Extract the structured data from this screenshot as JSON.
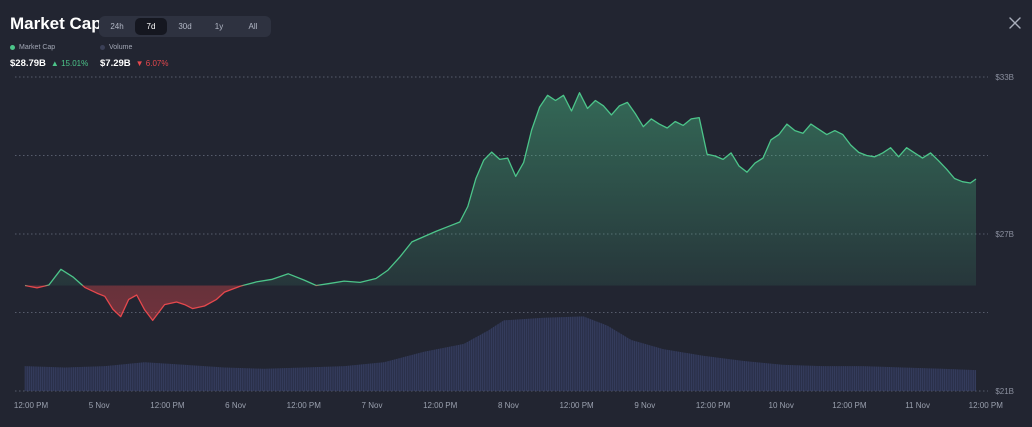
{
  "header": {
    "title": "Market Cap",
    "tabs": [
      {
        "label": "24h",
        "active": false
      },
      {
        "label": "7d",
        "active": true
      },
      {
        "label": "30d",
        "active": false
      },
      {
        "label": "1y",
        "active": false
      },
      {
        "label": "All",
        "active": false
      }
    ],
    "close_icon": "close-icon"
  },
  "legend": {
    "market_cap": {
      "label": "Market Cap",
      "value": "$28.79B",
      "change": "15.01%",
      "direction": "up",
      "color": "#4cc58a"
    },
    "volume": {
      "label": "Volume",
      "value": "$7.29B",
      "change": "6.07%",
      "direction": "down",
      "color": "#3b4057"
    }
  },
  "colors": {
    "up": "#4cc58a",
    "down": "#e5484d",
    "background": "#222531",
    "volume_bars": "#323a5e"
  },
  "chart_data": {
    "type": "line",
    "y_ticks": [
      {
        "label": "$33B",
        "value": 33
      },
      {
        "label": "$27B",
        "value": 27
      },
      {
        "label": "$21B",
        "value": 21
      }
    ],
    "x_ticks": [
      "12:00 PM",
      "5 Nov",
      "12:00 PM",
      "6 Nov",
      "12:00 PM",
      "7 Nov",
      "12:00 PM",
      "8 Nov",
      "12:00 PM",
      "9 Nov",
      "12:00 PM",
      "10 Nov",
      "12:00 PM",
      "11 Nov",
      "12:00 PM"
    ],
    "baseline": 25.03,
    "series": [
      {
        "name": "Market Cap",
        "points": [
          [
            0,
            25.03
          ],
          [
            0.15,
            24.94
          ],
          [
            0.3,
            25.05
          ],
          [
            0.45,
            25.65
          ],
          [
            0.6,
            25.36
          ],
          [
            0.75,
            24.96
          ],
          [
            0.9,
            24.74
          ],
          [
            1.0,
            24.62
          ],
          [
            1.1,
            24.13
          ],
          [
            1.2,
            23.84
          ],
          [
            1.3,
            24.5
          ],
          [
            1.4,
            24.67
          ],
          [
            1.5,
            24.1
          ],
          [
            1.6,
            23.7
          ],
          [
            1.75,
            24.3
          ],
          [
            1.9,
            24.4
          ],
          [
            2.0,
            24.3
          ],
          [
            2.1,
            24.15
          ],
          [
            2.25,
            24.25
          ],
          [
            2.4,
            24.5
          ],
          [
            2.5,
            24.78
          ],
          [
            2.7,
            25.01
          ],
          [
            2.9,
            25.17
          ],
          [
            3.1,
            25.27
          ],
          [
            3.3,
            25.48
          ],
          [
            3.5,
            25.24
          ],
          [
            3.65,
            25.03
          ],
          [
            3.8,
            25.1
          ],
          [
            4.0,
            25.2
          ],
          [
            4.2,
            25.15
          ],
          [
            4.4,
            25.3
          ],
          [
            4.55,
            25.62
          ],
          [
            4.7,
            26.13
          ],
          [
            4.85,
            26.7
          ],
          [
            5.0,
            26.9
          ],
          [
            5.15,
            27.1
          ],
          [
            5.3,
            27.28
          ],
          [
            5.45,
            27.46
          ],
          [
            5.55,
            28.05
          ],
          [
            5.65,
            29.11
          ],
          [
            5.75,
            29.82
          ],
          [
            5.85,
            30.13
          ],
          [
            5.95,
            29.85
          ],
          [
            6.05,
            29.9
          ],
          [
            6.15,
            29.2
          ],
          [
            6.25,
            29.73
          ],
          [
            6.35,
            30.97
          ],
          [
            6.45,
            31.85
          ],
          [
            6.55,
            32.3
          ],
          [
            6.65,
            32.1
          ],
          [
            6.75,
            32.3
          ],
          [
            6.85,
            31.7
          ],
          [
            6.95,
            32.4
          ],
          [
            7.05,
            31.8
          ],
          [
            7.15,
            32.1
          ],
          [
            7.25,
            31.9
          ],
          [
            7.35,
            31.55
          ],
          [
            7.45,
            31.9
          ],
          [
            7.55,
            32.03
          ],
          [
            7.65,
            31.6
          ],
          [
            7.75,
            31.1
          ],
          [
            7.85,
            31.4
          ],
          [
            7.95,
            31.2
          ],
          [
            8.05,
            31.05
          ],
          [
            8.15,
            31.3
          ],
          [
            8.25,
            31.15
          ],
          [
            8.35,
            31.4
          ],
          [
            8.45,
            31.45
          ],
          [
            8.55,
            30.05
          ],
          [
            8.65,
            29.98
          ],
          [
            8.75,
            29.85
          ],
          [
            8.85,
            30.1
          ],
          [
            8.95,
            29.6
          ],
          [
            9.05,
            29.36
          ],
          [
            9.15,
            29.71
          ],
          [
            9.25,
            29.9
          ],
          [
            9.35,
            30.6
          ],
          [
            9.45,
            30.8
          ],
          [
            9.55,
            31.2
          ],
          [
            9.65,
            30.95
          ],
          [
            9.75,
            30.85
          ],
          [
            9.85,
            31.2
          ],
          [
            9.95,
            31.0
          ],
          [
            10.05,
            30.8
          ],
          [
            10.15,
            30.95
          ],
          [
            10.25,
            30.8
          ],
          [
            10.35,
            30.4
          ],
          [
            10.45,
            30.12
          ],
          [
            10.55,
            30.0
          ],
          [
            10.65,
            29.95
          ],
          [
            10.75,
            30.1
          ],
          [
            10.85,
            30.3
          ],
          [
            10.95,
            29.95
          ],
          [
            11.05,
            30.3
          ],
          [
            11.15,
            30.1
          ],
          [
            11.25,
            29.9
          ],
          [
            11.35,
            30.1
          ],
          [
            11.45,
            29.8
          ],
          [
            11.55,
            29.48
          ],
          [
            11.65,
            29.12
          ],
          [
            11.75,
            29.0
          ],
          [
            11.85,
            28.95
          ],
          [
            11.92,
            29.1
          ]
        ]
      }
    ],
    "volume": {
      "name": "Volume",
      "points": [
        [
          0,
          21.95
        ],
        [
          0.5,
          21.9
        ],
        [
          1.0,
          21.95
        ],
        [
          1.5,
          22.1
        ],
        [
          2.0,
          22.0
        ],
        [
          2.5,
          21.9
        ],
        [
          3.0,
          21.85
        ],
        [
          3.5,
          21.9
        ],
        [
          4.0,
          21.95
        ],
        [
          4.5,
          22.1
        ],
        [
          5.0,
          22.5
        ],
        [
          5.5,
          22.8
        ],
        [
          5.8,
          23.3
        ],
        [
          6.0,
          23.7
        ],
        [
          6.5,
          23.8
        ],
        [
          7.0,
          23.85
        ],
        [
          7.3,
          23.5
        ],
        [
          7.6,
          22.95
        ],
        [
          8.0,
          22.6
        ],
        [
          8.5,
          22.35
        ],
        [
          9.0,
          22.15
        ],
        [
          9.5,
          22.0
        ],
        [
          10.0,
          21.95
        ],
        [
          10.5,
          21.95
        ],
        [
          11.0,
          21.9
        ],
        [
          11.5,
          21.85
        ],
        [
          11.92,
          21.8
        ]
      ]
    },
    "ylim": [
      21,
      33
    ],
    "xlim": [
      0,
      11.92
    ],
    "grid": true
  }
}
